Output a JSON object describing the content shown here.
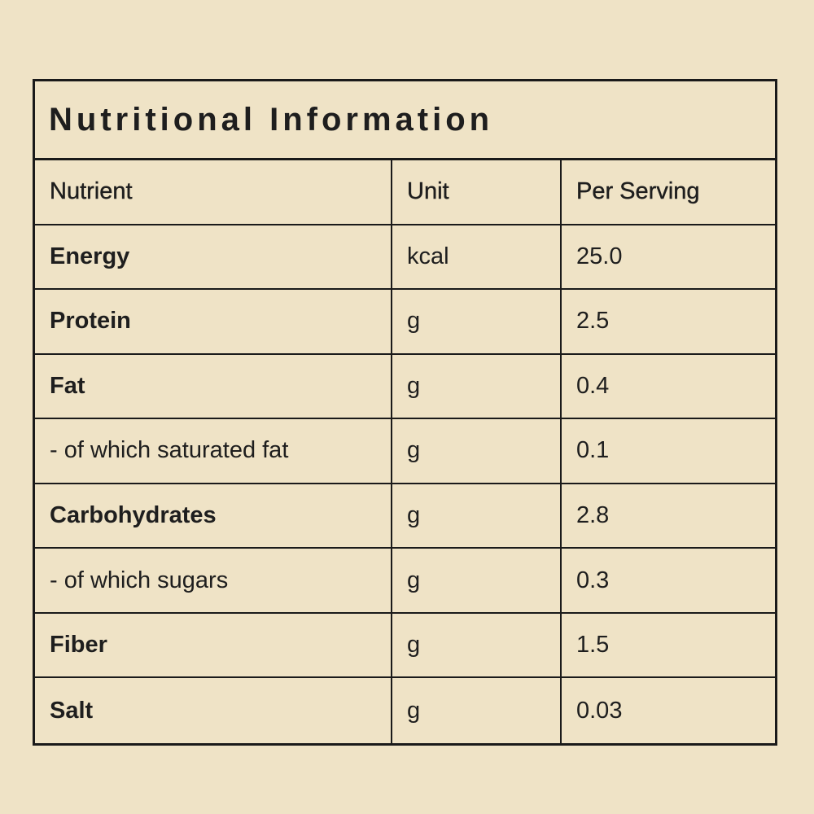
{
  "title": "Nutritional Information",
  "colors": {
    "background": "#EFE3C6",
    "border": "#1A1A1A",
    "text": "#1E1E1E"
  },
  "table": {
    "columns": [
      "Nutrient",
      "Unit",
      "Per Serving"
    ],
    "rows": [
      {
        "nutrient": "Energy",
        "unit": "kcal",
        "per_serving": "25.0"
      },
      {
        "nutrient": "Protein",
        "unit": "g",
        "per_serving": "2.5"
      },
      {
        "nutrient": "Fat",
        "unit": "g",
        "per_serving": "0.4"
      },
      {
        "nutrient": "- of which saturated fat",
        "unit": "g",
        "per_serving": "0.1"
      },
      {
        "nutrient": "Carbohydrates",
        "unit": "g",
        "per_serving": "2.8"
      },
      {
        "nutrient": "- of which sugars",
        "unit": "g",
        "per_serving": "0.3"
      },
      {
        "nutrient": "Fiber",
        "unit": "g",
        "per_serving": "1.5"
      },
      {
        "nutrient": "Salt",
        "unit": "g",
        "per_serving": "0.03"
      }
    ]
  }
}
